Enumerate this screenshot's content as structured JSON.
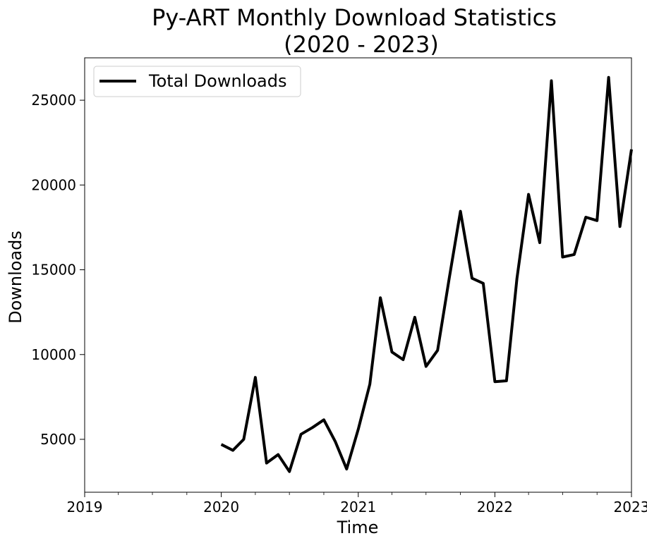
{
  "chart_data": {
    "type": "line",
    "title_line1": "Py-ART Monthly Download Statistics",
    "title_line2": "(2020 - 2023)",
    "xlabel": "Time",
    "ylabel": "Downloads",
    "xlim": [
      "2019-01-01",
      "2023-01-01"
    ],
    "ylim": [
      1880,
      27500
    ],
    "x_ticks": [
      "2019",
      "2020",
      "2021",
      "2022",
      "2023"
    ],
    "y_ticks": [
      5000,
      10000,
      15000,
      20000,
      25000
    ],
    "grid": false,
    "legend_position": "top-left",
    "series": [
      {
        "name": "Total Downloads",
        "color": "#000000",
        "x": [
          "2020-01",
          "2020-02",
          "2020-03",
          "2020-04",
          "2020-05",
          "2020-06",
          "2020-07",
          "2020-08",
          "2020-09",
          "2020-10",
          "2020-11",
          "2020-12",
          "2021-01",
          "2021-02",
          "2021-03",
          "2021-04",
          "2021-05",
          "2021-06",
          "2021-07",
          "2021-08",
          "2021-09",
          "2021-10",
          "2021-11",
          "2021-12",
          "2022-01",
          "2022-02",
          "2022-03",
          "2022-04",
          "2022-05",
          "2022-06",
          "2022-07",
          "2022-08",
          "2022-09",
          "2022-10",
          "2022-11",
          "2022-12",
          "2023-01"
        ],
        "values": [
          4700,
          4350,
          5000,
          8650,
          3600,
          4100,
          3100,
          5300,
          5700,
          6150,
          4850,
          3250,
          5600,
          8250,
          13350,
          10150,
          9700,
          12200,
          9300,
          10250,
          14500,
          18450,
          14500,
          14200,
          8400,
          8450,
          14500,
          19450,
          16600,
          26150,
          15750,
          15900,
          18100,
          17900,
          26350,
          17550,
          22100
        ]
      }
    ]
  }
}
